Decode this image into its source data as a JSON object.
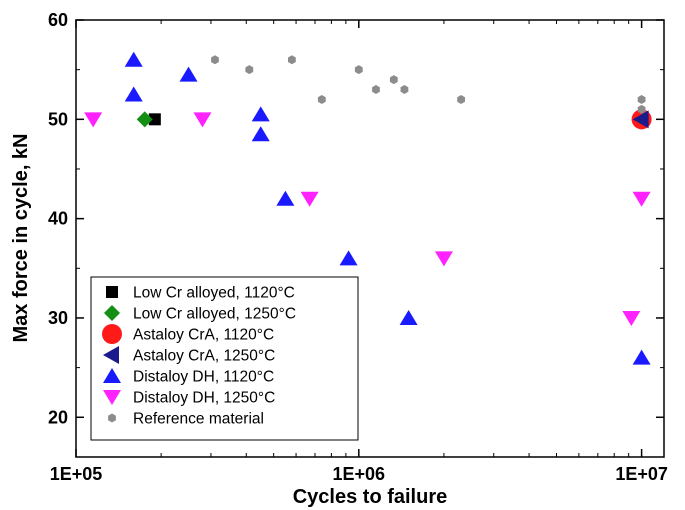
{
  "chart_data": {
    "type": "scatter",
    "title": "",
    "xlabel": "Cycles to failure",
    "ylabel": "Max force in cycle, kN",
    "x_scale": "log",
    "xlim": [
      100000,
      12000000
    ],
    "ylim": [
      16,
      60
    ],
    "x_ticks": [
      100000,
      1000000,
      10000000
    ],
    "x_tick_labels": [
      "1E+05",
      "1E+06",
      "1E+07"
    ],
    "y_ticks": [
      20,
      30,
      40,
      50,
      60
    ],
    "y_tick_labels": [
      "20",
      "30",
      "40",
      "50",
      "60"
    ],
    "grid": false,
    "legend_position": "bottom-left",
    "series": [
      {
        "name": "Low Cr alloyed, 1120°C",
        "marker": "square",
        "color": "#000000",
        "points": [
          [
            190000,
            50
          ]
        ]
      },
      {
        "name": "Low Cr alloyed, 1250°C",
        "marker": "diamond",
        "color": "#138f13",
        "points": [
          [
            175000,
            50
          ]
        ]
      },
      {
        "name": "Astaloy CrA, 1120°C",
        "marker": "circle",
        "color": "#ff1a1a",
        "points": [
          [
            10000000,
            50
          ]
        ]
      },
      {
        "name": "Astaloy CrA, 1250°C",
        "marker": "triangle-left",
        "color": "#1a1a8c",
        "points": [
          [
            10000000,
            50
          ]
        ]
      },
      {
        "name": "Distaloy DH, 1120°C",
        "marker": "triangle-up",
        "color": "#1a1aff",
        "points": [
          [
            160000,
            56
          ],
          [
            160000,
            52.5
          ],
          [
            250000,
            54.5
          ],
          [
            450000,
            50.5
          ],
          [
            450000,
            48.5
          ],
          [
            550000,
            42
          ],
          [
            920000,
            36
          ],
          [
            1500000,
            30
          ],
          [
            10000000,
            26
          ]
        ]
      },
      {
        "name": "Distaloy DH, 1250°C",
        "marker": "triangle-down",
        "color": "#ff22ff",
        "points": [
          [
            115000,
            50
          ],
          [
            280000,
            50
          ],
          [
            670000,
            42
          ],
          [
            2000000,
            36
          ],
          [
            9200000,
            30
          ],
          [
            10000000,
            42
          ]
        ]
      },
      {
        "name": "Reference material",
        "marker": "hexagon",
        "color": "#8c8c8c",
        "points": [
          [
            310000,
            56
          ],
          [
            410000,
            55
          ],
          [
            580000,
            56
          ],
          [
            740000,
            52
          ],
          [
            1000000,
            55
          ],
          [
            1150000,
            53
          ],
          [
            1330000,
            54
          ],
          [
            1450000,
            53
          ],
          [
            2300000,
            52
          ],
          [
            10000000,
            52
          ],
          [
            10000000,
            51
          ]
        ]
      }
    ]
  }
}
